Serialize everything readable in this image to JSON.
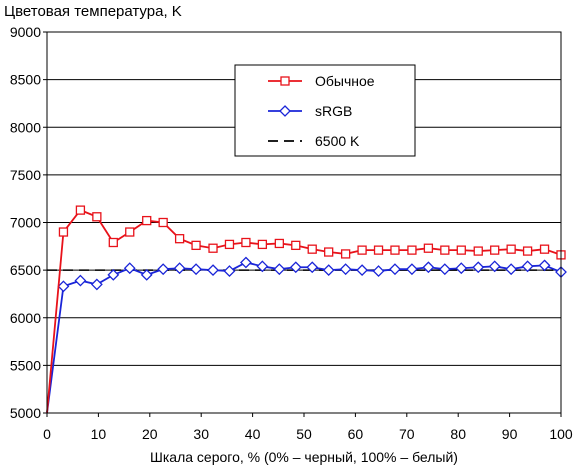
{
  "chart_data": {
    "type": "line",
    "title": "Цветовая температура, K",
    "xlabel": "Шкала серого, % (0% – черный, 100% – белый)",
    "ylabel": "",
    "xlim": [
      0,
      100
    ],
    "ylim": [
      5000,
      9000
    ],
    "x_ticks": [
      "0",
      "10",
      "20",
      "30",
      "40",
      "50",
      "60",
      "70",
      "80",
      "90",
      "100"
    ],
    "y_ticks": [
      "5000",
      "5500",
      "6000",
      "6500",
      "7000",
      "7500",
      "8000",
      "8500",
      "9000"
    ],
    "grid": "horizontal",
    "legend_position": "top-right",
    "x": [
      0,
      3.2,
      6.5,
      9.7,
      12.9,
      16.1,
      19.4,
      22.6,
      25.8,
      29,
      32.3,
      35.5,
      38.7,
      41.9,
      45.2,
      48.4,
      51.6,
      54.8,
      58.1,
      61.3,
      64.5,
      67.7,
      71,
      74.2,
      77.4,
      80.6,
      83.9,
      87.1,
      90.3,
      93.5,
      96.8,
      100
    ],
    "series": [
      {
        "name": "Обычное",
        "color": "#e8121a",
        "marker": "square",
        "values": [
          4950,
          6900,
          7130,
          7060,
          6790,
          6900,
          7020,
          7000,
          6830,
          6760,
          6730,
          6770,
          6790,
          6770,
          6780,
          6760,
          6720,
          6690,
          6670,
          6710,
          6710,
          6710,
          6710,
          6730,
          6710,
          6710,
          6700,
          6710,
          6720,
          6700,
          6720,
          6660
        ]
      },
      {
        "name": "sRGB",
        "color": "#1a25d8",
        "marker": "diamond",
        "values": [
          4950,
          6330,
          6390,
          6350,
          6450,
          6520,
          6450,
          6510,
          6520,
          6510,
          6500,
          6490,
          6580,
          6540,
          6510,
          6530,
          6530,
          6500,
          6510,
          6500,
          6490,
          6510,
          6510,
          6530,
          6510,
          6520,
          6530,
          6540,
          6510,
          6540,
          6550,
          6480
        ]
      },
      {
        "name": "6500 K",
        "color": "#000000",
        "dash": true,
        "constant": 6500
      }
    ]
  }
}
